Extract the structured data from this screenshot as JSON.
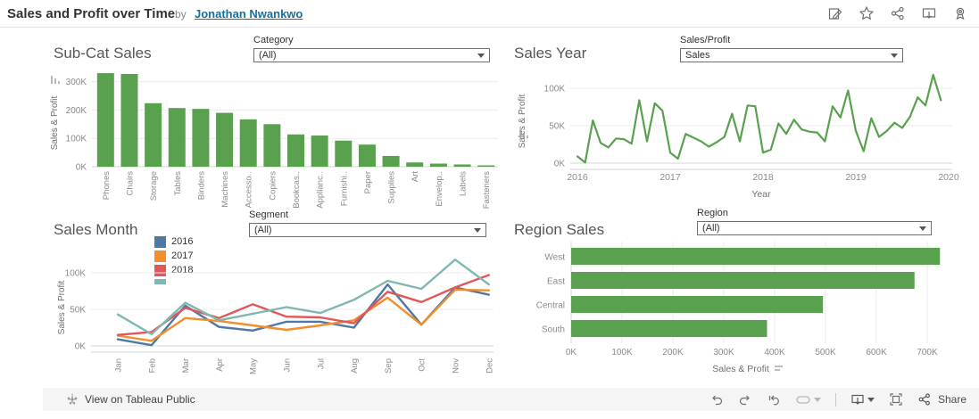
{
  "header": {
    "title": "Sales and Profit over Time",
    "byline_prefix": "by",
    "author": "Jonathan Nwankwo",
    "icons": [
      "edit-icon",
      "favorite-star-icon",
      "share-icon",
      "download-icon",
      "award-icon"
    ]
  },
  "filters": {
    "category": {
      "label": "Category",
      "value": "(All)"
    },
    "sales_profit": {
      "label": "Sales/Profit",
      "value": "Sales"
    },
    "segment": {
      "label": "Segment",
      "value": "(All)"
    },
    "region": {
      "label": "Region",
      "value": "(All)"
    }
  },
  "colors": {
    "green": "#59a14f",
    "blue": "#4e79a7",
    "orange": "#f28e2b",
    "red": "#e15759",
    "teal": "#7db8b2",
    "grid": "#ebebeb",
    "axis": "#d4d4d4",
    "tick_text": "#8a8a8a",
    "axis_title": "#6e6e6e",
    "link": "#17719e"
  },
  "chart_data": [
    {
      "id": "subcat",
      "type": "bar",
      "title": "Sub-Cat Sales",
      "ylabel": "Sales & Profit",
      "units": "K",
      "ylim": [
        0,
        340
      ],
      "yticks": [
        "0K",
        "100K",
        "200K",
        "300K"
      ],
      "ytick_values": [
        0,
        100,
        200,
        300
      ],
      "categories": [
        "Phones",
        "Chairs",
        "Storage",
        "Tables",
        "Binders",
        "Machines",
        "Accesso..",
        "Copiers",
        "Bookcas..",
        "Applianc..",
        "Furnishi..",
        "Paper",
        "Supplies",
        "Art",
        "Envelop..",
        "Labels",
        "Fasteners"
      ],
      "values": [
        330,
        327,
        224,
        207,
        204,
        190,
        167,
        150,
        114,
        110,
        92,
        78,
        38,
        15,
        11,
        8,
        2
      ]
    },
    {
      "id": "year",
      "type": "line",
      "title": "Sales Year",
      "xlabel": "Year",
      "ylabel": "Sales & Profit",
      "units": "K",
      "ylim": [
        0,
        125
      ],
      "yticks": [
        "0K",
        "50K",
        "100K"
      ],
      "ytick_values": [
        0,
        50,
        100
      ],
      "xticks": [
        "2016",
        "2017",
        "2018",
        "2019",
        "2020"
      ],
      "series": [
        {
          "name": "Sales",
          "color_key": "green",
          "values": [
            9,
            1,
            57,
            27,
            21,
            33,
            32,
            26,
            84,
            29,
            80,
            70,
            14,
            6,
            39,
            34,
            29,
            22,
            28,
            35,
            66,
            29,
            77,
            76,
            14,
            18,
            53,
            39,
            58,
            45,
            42,
            41,
            29,
            76,
            61,
            97,
            43,
            16,
            60,
            35,
            43,
            54,
            47,
            62,
            88,
            77,
            118,
            84
          ]
        }
      ]
    },
    {
      "id": "month",
      "type": "line",
      "title": "Sales Month",
      "ylabel": "Sales & Profit",
      "units": "K",
      "ylim": [
        0,
        125
      ],
      "yticks": [
        "0K",
        "50K",
        "100K"
      ],
      "ytick_values": [
        0,
        50,
        100
      ],
      "categories": [
        "Jan",
        "Feb",
        "Mar",
        "Apr",
        "May",
        "Jun",
        "Jul",
        "Aug",
        "Sep",
        "Oct",
        "Nov",
        "Dec"
      ],
      "legend": [
        "2016",
        "2017",
        "2018"
      ],
      "series": [
        {
          "name": "2016",
          "color_key": "blue",
          "values": [
            9,
            1,
            55,
            26,
            21,
            33,
            33,
            25,
            84,
            29,
            80,
            70
          ]
        },
        {
          "name": "2017",
          "color_key": "orange",
          "values": [
            14,
            7,
            38,
            34,
            28,
            22,
            28,
            35,
            66,
            29,
            77,
            76
          ]
        },
        {
          "name": "2018",
          "color_key": "red",
          "values": [
            15,
            19,
            52,
            38,
            57,
            40,
            39,
            31,
            74,
            60,
            80,
            97
          ]
        },
        {
          "name": "",
          "color_key": "teal",
          "values": [
            43,
            16,
            59,
            35,
            44,
            53,
            45,
            63,
            89,
            78,
            118,
            84
          ]
        }
      ]
    },
    {
      "id": "region",
      "type": "hbar",
      "title": "Region Sales",
      "xlabel": "Sales & Profit",
      "units": "K",
      "xlim": [
        0,
        760
      ],
      "xticks": [
        "0K",
        "100K",
        "200K",
        "300K",
        "400K",
        "500K",
        "600K",
        "700K"
      ],
      "xtick_values": [
        0,
        100,
        200,
        300,
        400,
        500,
        600,
        700
      ],
      "categories": [
        "West",
        "East",
        "Central",
        "South"
      ],
      "values": [
        725,
        675,
        495,
        385
      ]
    }
  ],
  "footer": {
    "view_text": "View on Tableau Public",
    "share_label": "Share",
    "icons": [
      "undo-icon",
      "redo-icon",
      "replay-icon",
      "revert-icon",
      "download-icon",
      "fullscreen-icon",
      "share-icon"
    ]
  }
}
